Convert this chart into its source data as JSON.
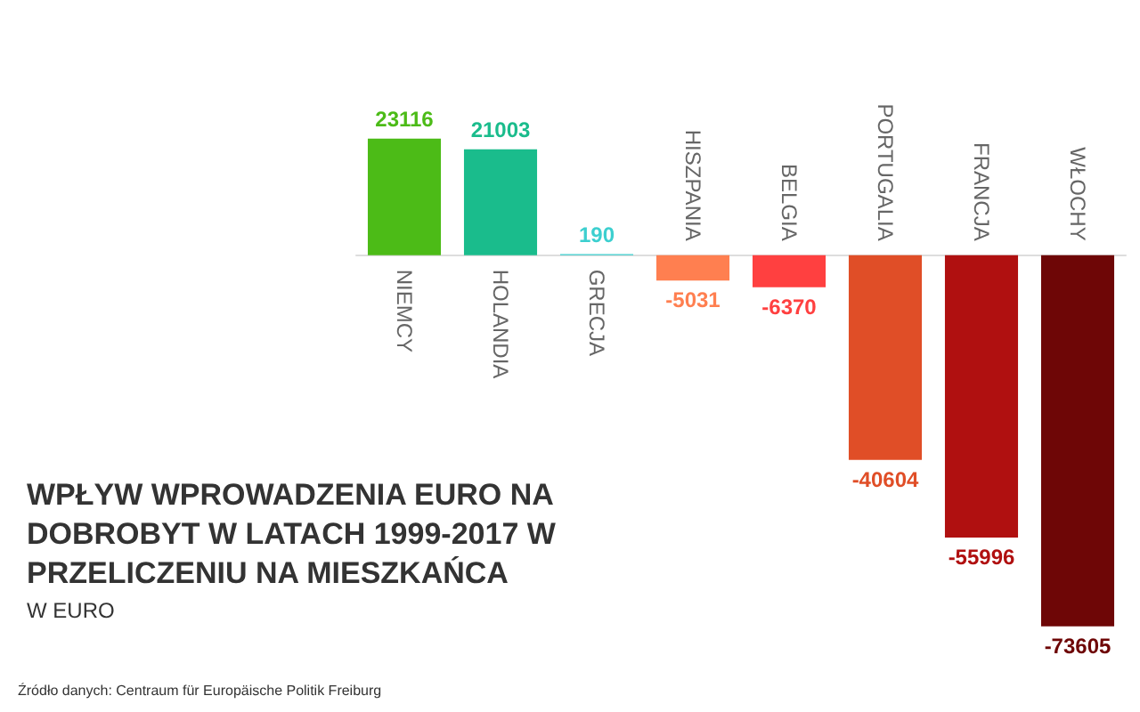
{
  "chart_data": {
    "type": "bar",
    "title": "WPŁYW WPROWADZENIA EURO NA DOBROBYT W LATACH 1999-2017 W PRZELICZENIU NA MIESZKAŃCA",
    "subtitle": "W EURO",
    "categories": [
      "NIEMCY",
      "HOLANDIA",
      "GRECJA",
      "HISZPANIA",
      "BELGIA",
      "PORTUGALIA",
      "FRANCJA",
      "WŁOCHY"
    ],
    "values": [
      23116,
      21003,
      190,
      -5031,
      -6370,
      -40604,
      -55996,
      -73605
    ],
    "colors": [
      "#4cbb17",
      "#1abc8c",
      "#3ccfcf",
      "#ff7f50",
      "#ff4040",
      "#e04e27",
      "#b01010",
      "#6e0606"
    ],
    "data_labels": true,
    "grid": false,
    "annotations": [
      "Źródło danych: Centraum für Europäische Politik Freiburg"
    ]
  }
}
